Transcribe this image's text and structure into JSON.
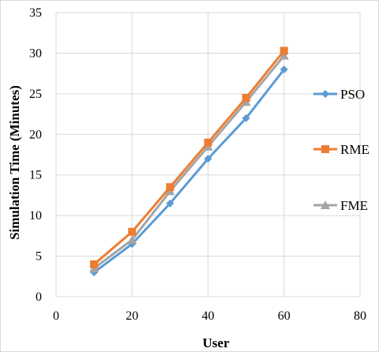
{
  "chart_data": {
    "type": "line",
    "xlabel": "User",
    "ylabel": "Simulation Time (Minutes)",
    "xlim": [
      0,
      80
    ],
    "ylim": [
      0,
      35
    ],
    "x_ticks": [
      0,
      20,
      40,
      60,
      80
    ],
    "y_ticks": [
      0,
      5,
      10,
      15,
      20,
      25,
      30,
      35
    ],
    "grid": true,
    "legend_position": "right",
    "series": [
      {
        "name": "PSO",
        "color": "#5B9BD5",
        "marker": "diamond",
        "x": [
          10,
          20,
          30,
          40,
          50,
          60
        ],
        "y": [
          3,
          6.5,
          11.5,
          17,
          22,
          28
        ]
      },
      {
        "name": "RME",
        "color": "#ED7D31",
        "marker": "square",
        "x": [
          10,
          20,
          30,
          40,
          50,
          60
        ],
        "y": [
          4,
          8,
          13.5,
          19,
          24.5,
          30.3
        ]
      },
      {
        "name": "FME",
        "color": "#A5A5A5",
        "marker": "triangle",
        "x": [
          10,
          20,
          30,
          40,
          50,
          60
        ],
        "y": [
          3.5,
          7,
          13,
          18.5,
          24,
          29.7
        ]
      }
    ]
  }
}
